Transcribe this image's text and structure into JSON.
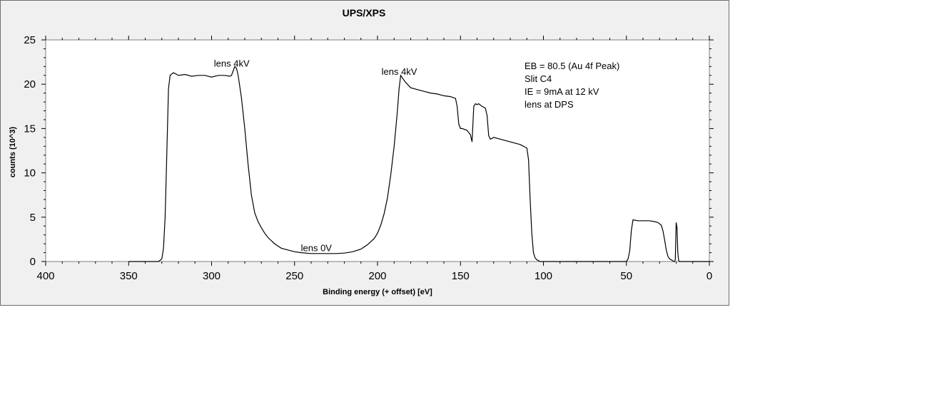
{
  "chart_data": {
    "type": "line",
    "title": "UPS/XPS",
    "xlabel": "Binding energy (+ offset) [eV]",
    "ylabel": "counts (10^3)",
    "xlim": [
      400,
      0
    ],
    "ylim": [
      0,
      25
    ],
    "x_reversed": true,
    "grid": false,
    "legend": "none",
    "x_ticks": [
      400,
      350,
      300,
      250,
      200,
      150,
      100,
      50,
      0
    ],
    "y_ticks": [
      0,
      5,
      10,
      15,
      20,
      25
    ],
    "series": [
      {
        "color": "#000000",
        "x": [
          350,
          332,
          330,
          329,
          328,
          327,
          326,
          325,
          323,
          320,
          316,
          312,
          308,
          304,
          300,
          296,
          292,
          289,
          288,
          287,
          286,
          285,
          284,
          282,
          280,
          278,
          276,
          274,
          272,
          270,
          268,
          266,
          262,
          258,
          254,
          250,
          246,
          240,
          235,
          230,
          225,
          220,
          215,
          210,
          206,
          202,
          200,
          198,
          196,
          194,
          192,
          190,
          188,
          187,
          186,
          185,
          183,
          180,
          176,
          172,
          168,
          164,
          160,
          156,
          153,
          152,
          151,
          150,
          149,
          146,
          144,
          143,
          142,
          141,
          140,
          139,
          137,
          135,
          134,
          133,
          132,
          130,
          126,
          122,
          118,
          114,
          112,
          111,
          110,
          109,
          108,
          107,
          106,
          105,
          104,
          103,
          102,
          100,
          90,
          70,
          50,
          49,
          48,
          47,
          46,
          43,
          40,
          36,
          33,
          31,
          29,
          28,
          27,
          26,
          25,
          24,
          22,
          21.5,
          21,
          20.5,
          20,
          19.5,
          19,
          18.5,
          18,
          15,
          0
        ],
        "y": [
          0,
          0,
          0.3,
          1.5,
          5,
          12,
          19.5,
          21,
          21.3,
          21,
          21.1,
          20.9,
          21,
          21,
          20.8,
          21,
          21,
          20.9,
          21,
          21.5,
          22,
          21.8,
          21,
          18.5,
          15,
          11,
          7.5,
          5.5,
          4.5,
          3.8,
          3.2,
          2.7,
          2,
          1.5,
          1.3,
          1.1,
          1,
          0.9,
          0.9,
          0.9,
          0.9,
          0.95,
          1.1,
          1.4,
          1.9,
          2.6,
          3.2,
          4.1,
          5.4,
          7.2,
          9.8,
          13,
          17,
          19.5,
          21,
          20.7,
          20.2,
          19.6,
          19.4,
          19.2,
          19,
          18.9,
          18.7,
          18.6,
          18.4,
          17.5,
          15.5,
          15,
          15,
          14.8,
          14.3,
          13.5,
          17.5,
          17.8,
          17.7,
          17.8,
          17.5,
          17.3,
          16.5,
          14.2,
          13.8,
          14,
          13.8,
          13.6,
          13.4,
          13.2,
          13,
          12.9,
          12.8,
          11.5,
          7,
          3.2,
          1,
          0.4,
          0.2,
          0.1,
          0,
          0,
          0,
          0,
          0,
          0.3,
          1.2,
          3.5,
          4.7,
          4.6,
          4.6,
          4.6,
          4.5,
          4.4,
          4.1,
          3.5,
          2.5,
          1.3,
          0.6,
          0.3,
          0.1,
          0,
          0,
          0.2,
          4.4,
          3.8,
          1,
          0.1,
          0,
          0,
          0
        ]
      }
    ],
    "annotations": [
      {
        "text": "lens 4kV",
        "x": 287,
        "y": 22.3
      },
      {
        "text": "lens 0V",
        "x": 236,
        "y": 1.5
      },
      {
        "text": "lens 4kV",
        "x": 186,
        "y": 21.4
      }
    ],
    "notes": [
      "EB = 80.5 (Au 4f Peak)",
      "Slit C4",
      "IE = 9mA at 12 kV",
      "lens at DPS"
    ]
  }
}
